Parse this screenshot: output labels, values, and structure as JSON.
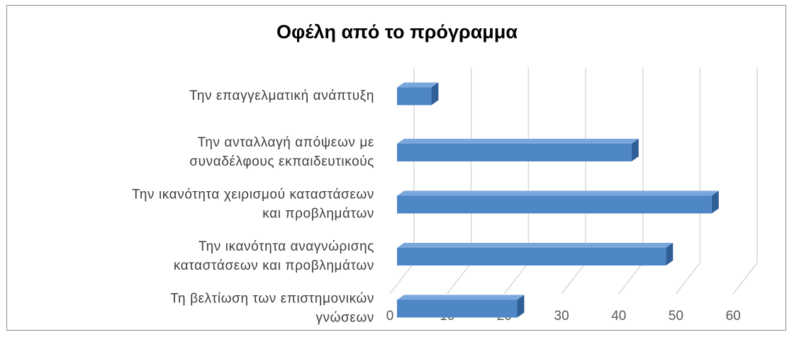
{
  "chart_data": {
    "type": "bar",
    "orientation": "horizontal",
    "title": "Οφέλη από το πρόγραμμα",
    "categories": [
      [
        "Την επαγγελματική ανάπτυξη"
      ],
      [
        "Την ανταλλαγή απόψεων με",
        "συναδέλφους εκπαιδευτικούς"
      ],
      [
        "Την ικανότητα χειρισμού καταστάσεων",
        "και προβλημάτων"
      ],
      [
        "Την ικανότητα αναγνώρισης",
        "καταστάσεων και προβλημάτων"
      ],
      [
        "Τη βελτίωση των επιστημονικών",
        "γνώσεων"
      ]
    ],
    "values": [
      6,
      41,
      55,
      47,
      21
    ],
    "xlim": [
      0,
      60
    ],
    "xticks": [
      "0",
      "10",
      "20",
      "30",
      "40",
      "50",
      "60"
    ],
    "grid": true,
    "style": "3d",
    "colors": {
      "bar_front": "#4f86c6",
      "bar_top": "#7aa7db",
      "bar_side": "#2f5f96",
      "grid": "#d9d9d9"
    }
  }
}
